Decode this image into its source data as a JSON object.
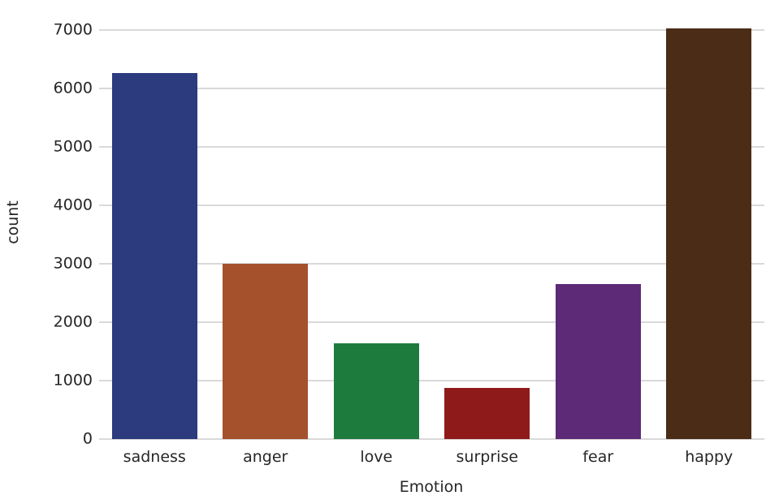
{
  "chart_data": {
    "type": "bar",
    "title": "",
    "xlabel": "Emotion",
    "ylabel": "count",
    "categories": [
      "sadness",
      "anger",
      "love",
      "surprise",
      "fear",
      "happy"
    ],
    "values": [
      6265,
      2993,
      1641,
      879,
      2652,
      7029
    ],
    "bar_colors": [
      "#2c3a7e",
      "#a5512b",
      "#1e7b3e",
      "#8e1a1a",
      "#5c2a77",
      "#4a2c17"
    ],
    "ylim": [
      0,
      7400
    ],
    "yticks": [
      0,
      1000,
      2000,
      3000,
      4000,
      5000,
      6000,
      7000
    ],
    "grid": "horizontal",
    "grid_color": "#d9d9d9",
    "legend": "none",
    "background": "#ffffff"
  }
}
